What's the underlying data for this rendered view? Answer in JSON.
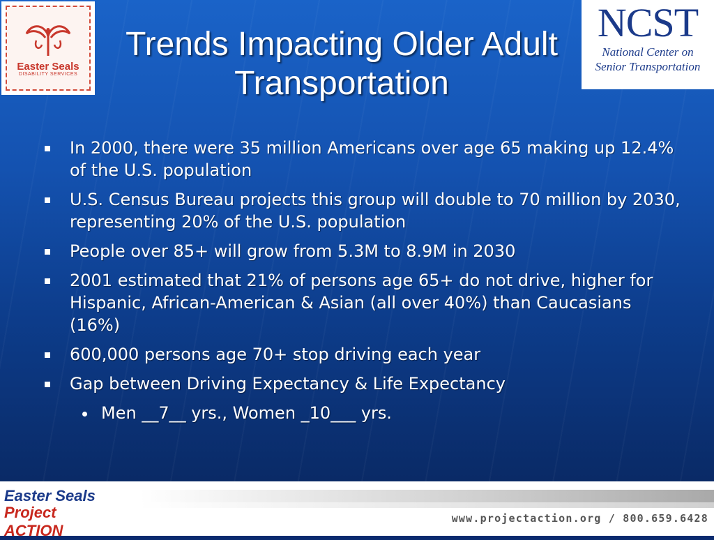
{
  "slide": {
    "title": "Trends Impacting Older Adult Transportation",
    "bullets": [
      {
        "text": "In 2000, there were 35 million Americans over age 65 making up 12.4% of the U.S. population"
      },
      {
        "text": "U.S. Census Bureau projects this group will double to 70 million by 2030, representing 20% of the U.S. population"
      },
      {
        "text": "People over 85+ will grow from 5.3M to 8.9M in 2030"
      },
      {
        "text": "2001 estimated that 21% of persons age 65+ do not drive, higher for Hispanic, African-American & Asian  (all over 40%) than Caucasians (16%)"
      },
      {
        "text": "600,000 persons age 70+ stop driving each year"
      },
      {
        "text": "Gap between Driving Expectancy & Life Expectancy"
      }
    ],
    "sub_bullet": {
      "text": "Men __7__ yrs., Women _10___ yrs."
    }
  },
  "logos": {
    "easter_seals": {
      "name": "Easter Seals",
      "sub": "DISABILITY SERVICES"
    },
    "ncst": {
      "abbr": "NCST",
      "line1": "National Center on",
      "line2": "Senior Transportation"
    },
    "project_action": {
      "line1": "Easter Seals",
      "line2": "Project ACTION"
    }
  },
  "footer": {
    "contact": "www.projectaction.org / 800.659.6428"
  },
  "colors": {
    "background": "#1452b0",
    "title": "#ffffff",
    "brand_red": "#c8372c",
    "brand_blue": "#1b3a8a"
  }
}
